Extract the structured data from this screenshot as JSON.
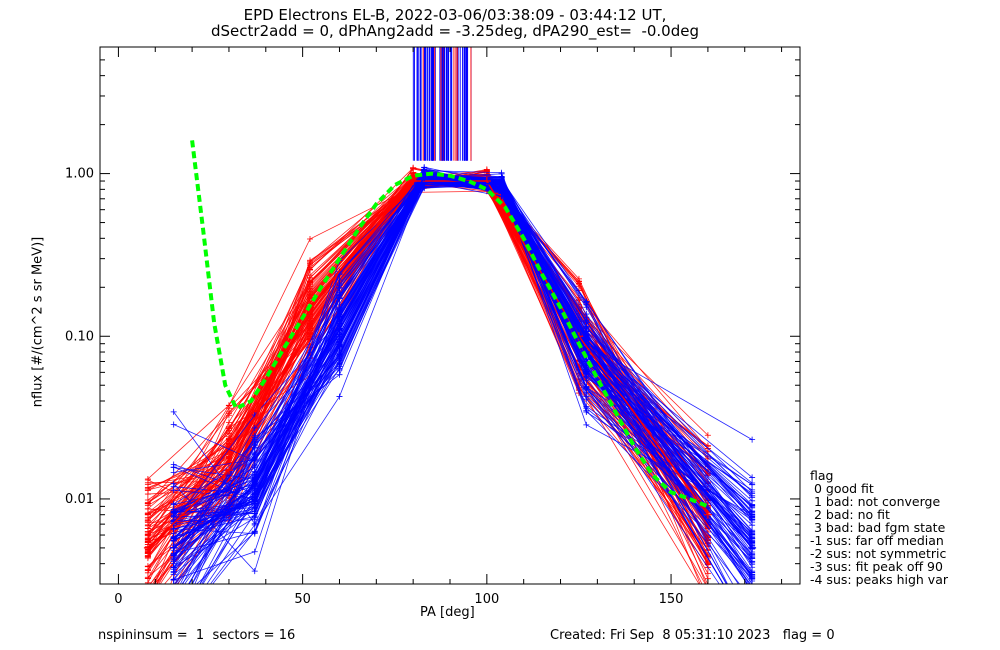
{
  "chart_data": {
    "type": "line",
    "title_line1": "EPD Electrons EL-B, 2022-03-06/03:38:09 - 03:44:12 UT,",
    "title_line2": "dSectr2add = 0, dPhAng2add = -3.25deg, dPA290_est=  -0.0deg",
    "xlabel": "PA [deg]",
    "ylabel": "nflux [#/(cm^2 s sr MeV)]",
    "xlim": [
      -5,
      185
    ],
    "ylim": [
      0.003,
      6.0
    ],
    "yscale": "log",
    "x_ticks": [
      0,
      50,
      100,
      150
    ],
    "x_tick_labels": [
      "0",
      "50",
      "100",
      "150"
    ],
    "y_ticks": [
      0.01,
      0.1,
      1.0
    ],
    "y_tick_labels": [
      "0.01",
      "0.10",
      "1.00"
    ],
    "series": [
      {
        "color": "#ff0000",
        "x": [
          8,
          30,
          52,
          80,
          100,
          125,
          160
        ],
        "values": [
          0.005,
          0.015,
          0.15,
          0.9,
          0.9,
          0.1,
          0.008
        ]
      },
      {
        "color": "#0000ff",
        "x": [
          15,
          37,
          60,
          83,
          104,
          127,
          172
        ],
        "values": [
          0.005,
          0.012,
          0.12,
          0.95,
          0.85,
          0.08,
          0.005
        ]
      }
    ],
    "fit_curve": {
      "color": "#00ff00",
      "x": [
        20,
        23,
        26,
        29,
        32,
        36,
        40,
        45,
        50,
        55,
        60,
        65,
        70,
        75,
        80,
        85,
        90,
        95,
        100,
        105,
        110,
        115,
        120,
        125,
        130,
        135,
        140,
        145,
        150,
        155,
        160
      ],
      "values": [
        1.6,
        0.45,
        0.12,
        0.05,
        0.036,
        0.04,
        0.055,
        0.085,
        0.13,
        0.2,
        0.3,
        0.45,
        0.65,
        0.85,
        0.97,
        1.0,
        0.97,
        0.9,
        0.8,
        0.62,
        0.4,
        0.24,
        0.15,
        0.09,
        0.055,
        0.034,
        0.021,
        0.014,
        0.011,
        0.01,
        0.009
      ]
    },
    "legend": {
      "title": "flag",
      "entries": [
        " 0 good fit",
        " 1 bad: not converge",
        " 2 bad: no fit",
        " 3 bad: bad fgm state",
        "-1 sus: far off median",
        "-2 sus: not symmetric",
        "-3 sus: fit peak off 90",
        "-4 sus: peaks high var"
      ]
    },
    "footer_left": "nspininsum =  1  sectors = 16",
    "footer_right": "Created: Fri Sep  8 05:31:10 2023   flag = 0",
    "grid": false
  }
}
